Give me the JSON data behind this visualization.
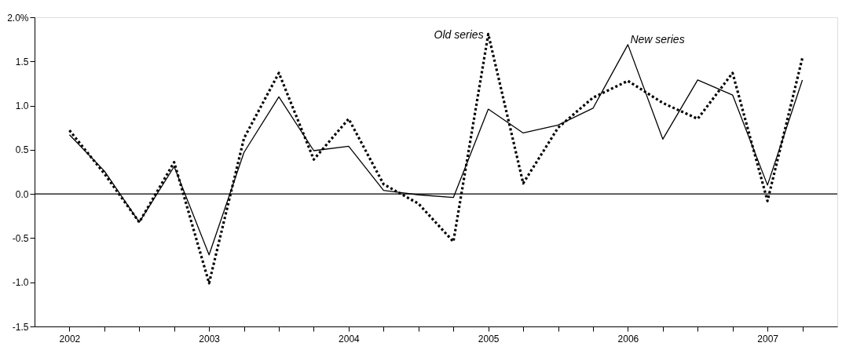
{
  "chart_data": {
    "type": "line",
    "categories": [
      "2002",
      null,
      null,
      null,
      "2003",
      null,
      null,
      null,
      "2004",
      null,
      null,
      null,
      "2005",
      null,
      null,
      null,
      "2006",
      null,
      null,
      null,
      "2007",
      null
    ],
    "series": [
      {
        "name": "New series",
        "color": "#000000",
        "line_style": "solid",
        "values": [
          0.67,
          0.26,
          -0.32,
          0.31,
          -0.69,
          0.47,
          1.1,
          0.49,
          0.54,
          0.04,
          -0.01,
          -0.04,
          0.96,
          0.69,
          0.78,
          0.97,
          1.69,
          0.62,
          1.29,
          1.12,
          0.1,
          1.29
        ]
      },
      {
        "name": "Old series",
        "color": "#000000",
        "line_style": "dotted",
        "values": [
          0.72,
          0.23,
          -0.32,
          0.36,
          -1.01,
          0.63,
          1.37,
          0.39,
          0.85,
          0.11,
          -0.11,
          -0.54,
          1.81,
          0.12,
          0.75,
          1.09,
          1.28,
          1.03,
          0.85,
          1.37,
          -0.08,
          1.54
        ]
      }
    ],
    "ylim": [
      -1.5,
      2.0
    ],
    "yticks": [
      {
        "value": -1.5,
        "label": "-1.5"
      },
      {
        "value": -1.0,
        "label": "-1.0"
      },
      {
        "value": -0.5,
        "label": "-0.5"
      },
      {
        "value": 0,
        "label": "0.0"
      },
      {
        "value": 0.5,
        "label": "0.5"
      },
      {
        "value": 1.0,
        "label": "1.0"
      },
      {
        "value": 1.5,
        "label": "1.5"
      },
      {
        "value": 2.0,
        "label": "2.0%"
      }
    ],
    "ref_lines": [
      {
        "axis": "y",
        "value": 0,
        "color": "#000000",
        "line_style": "solid"
      }
    ],
    "grid": false
  }
}
